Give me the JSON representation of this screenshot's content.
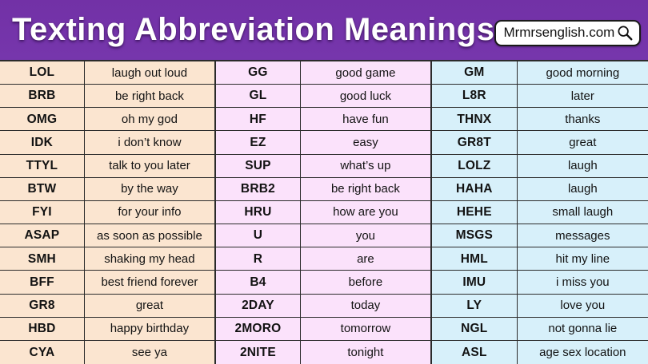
{
  "header": {
    "title": "Texting Abbreviation Meanings",
    "badge_label": "Mrmrsenglish.com",
    "badge_icon": "search-icon"
  },
  "colors": {
    "header_purple": "#7231A6",
    "header_purple_2": "#7636AC",
    "group1_bg": "#FBE5D0",
    "group2_bg": "#FBE2FB",
    "group3_bg": "#D7F0FA",
    "border": "#2B2B2B",
    "title_text": "#FFFFFF",
    "cell_text": "#121212"
  },
  "table": {
    "groups": [
      {
        "bg": "#FBE5D0",
        "rows": [
          {
            "abbr": "LOL",
            "meaning": "laugh out loud"
          },
          {
            "abbr": "BRB",
            "meaning": "be right back"
          },
          {
            "abbr": "OMG",
            "meaning": "oh my god"
          },
          {
            "abbr": "IDK",
            "meaning": "i don’t know"
          },
          {
            "abbr": "TTYL",
            "meaning": "talk to you later"
          },
          {
            "abbr": "BTW",
            "meaning": "by the way"
          },
          {
            "abbr": "FYI",
            "meaning": "for your info"
          },
          {
            "abbr": "ASAP",
            "meaning": "as soon as possible"
          },
          {
            "abbr": "SMH",
            "meaning": "shaking my head"
          },
          {
            "abbr": "BFF",
            "meaning": "best friend forever"
          },
          {
            "abbr": "GR8",
            "meaning": "great"
          },
          {
            "abbr": "HBD",
            "meaning": "happy birthday"
          },
          {
            "abbr": "CYA",
            "meaning": "see ya"
          }
        ]
      },
      {
        "bg": "#FBE2FB",
        "rows": [
          {
            "abbr": "GG",
            "meaning": "good game"
          },
          {
            "abbr": "GL",
            "meaning": "good luck"
          },
          {
            "abbr": "HF",
            "meaning": "have fun"
          },
          {
            "abbr": "EZ",
            "meaning": "easy"
          },
          {
            "abbr": "SUP",
            "meaning": "what’s up"
          },
          {
            "abbr": "BRB2",
            "meaning": "be right back"
          },
          {
            "abbr": "HRU",
            "meaning": "how are you"
          },
          {
            "abbr": "U",
            "meaning": "you"
          },
          {
            "abbr": "R",
            "meaning": "are"
          },
          {
            "abbr": "B4",
            "meaning": "before"
          },
          {
            "abbr": "2DAY",
            "meaning": "today"
          },
          {
            "abbr": "2MORO",
            "meaning": "tomorrow"
          },
          {
            "abbr": "2NITE",
            "meaning": "tonight"
          }
        ]
      },
      {
        "bg": "#D7F0FA",
        "rows": [
          {
            "abbr": "GM",
            "meaning": "good morning"
          },
          {
            "abbr": "L8R",
            "meaning": "later"
          },
          {
            "abbr": "THNX",
            "meaning": "thanks"
          },
          {
            "abbr": "GR8T",
            "meaning": "great"
          },
          {
            "abbr": "LOLZ",
            "meaning": "laugh"
          },
          {
            "abbr": "HAHA",
            "meaning": "laugh"
          },
          {
            "abbr": "HEHE",
            "meaning": "small laugh"
          },
          {
            "abbr": "MSGS",
            "meaning": "messages"
          },
          {
            "abbr": "HML",
            "meaning": "hit my line"
          },
          {
            "abbr": "IMU",
            "meaning": "i miss you"
          },
          {
            "abbr": "LY",
            "meaning": "love you"
          },
          {
            "abbr": "NGL",
            "meaning": "not gonna lie"
          },
          {
            "abbr": "ASL",
            "meaning": "age sex location"
          }
        ]
      }
    ]
  }
}
